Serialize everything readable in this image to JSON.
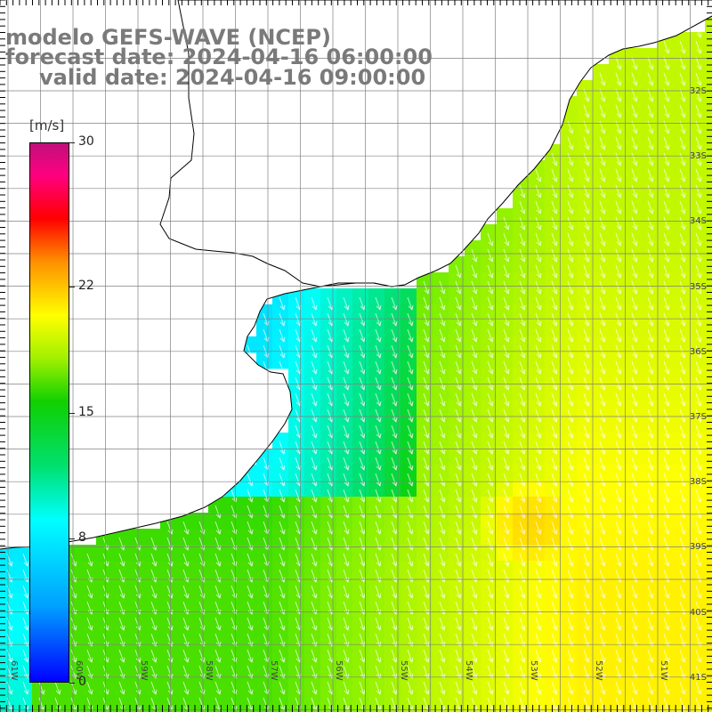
{
  "title": {
    "line1": "modelo GEFS-WAVE (NCEP)",
    "line2": "forecast date: 2024-04-16 06:00:00",
    "line3": "valid date: 2024-04-16 09:00:00"
  },
  "colorbar": {
    "unit": "[m/s]",
    "ticks": [
      "30",
      "22",
      "15",
      "8",
      "0"
    ],
    "tick_values": [
      30,
      22,
      15,
      8,
      0
    ],
    "min": 0,
    "max": 30
  },
  "axes": {
    "lat_labels": [
      "32S",
      "33S",
      "34S",
      "35S",
      "36S",
      "37S",
      "38S",
      "39S",
      "40S",
      "41S"
    ],
    "lat_values": [
      -32,
      -33,
      -34,
      -35,
      -36,
      -37,
      -38,
      -39,
      -40,
      -41
    ],
    "lon_labels": [
      "61W",
      "60W",
      "59W",
      "58W",
      "57W",
      "56W",
      "55W",
      "54W",
      "53W",
      "52W",
      "51W"
    ],
    "lon_values": [
      -61,
      -60,
      -59,
      -58,
      -57,
      -56,
      -55,
      -54,
      -53,
      -52,
      -51
    ]
  },
  "colors": {
    "land": "#ffffff",
    "coast": "#000000",
    "grid": "#808080",
    "arrow": "#ffffff"
  }
}
